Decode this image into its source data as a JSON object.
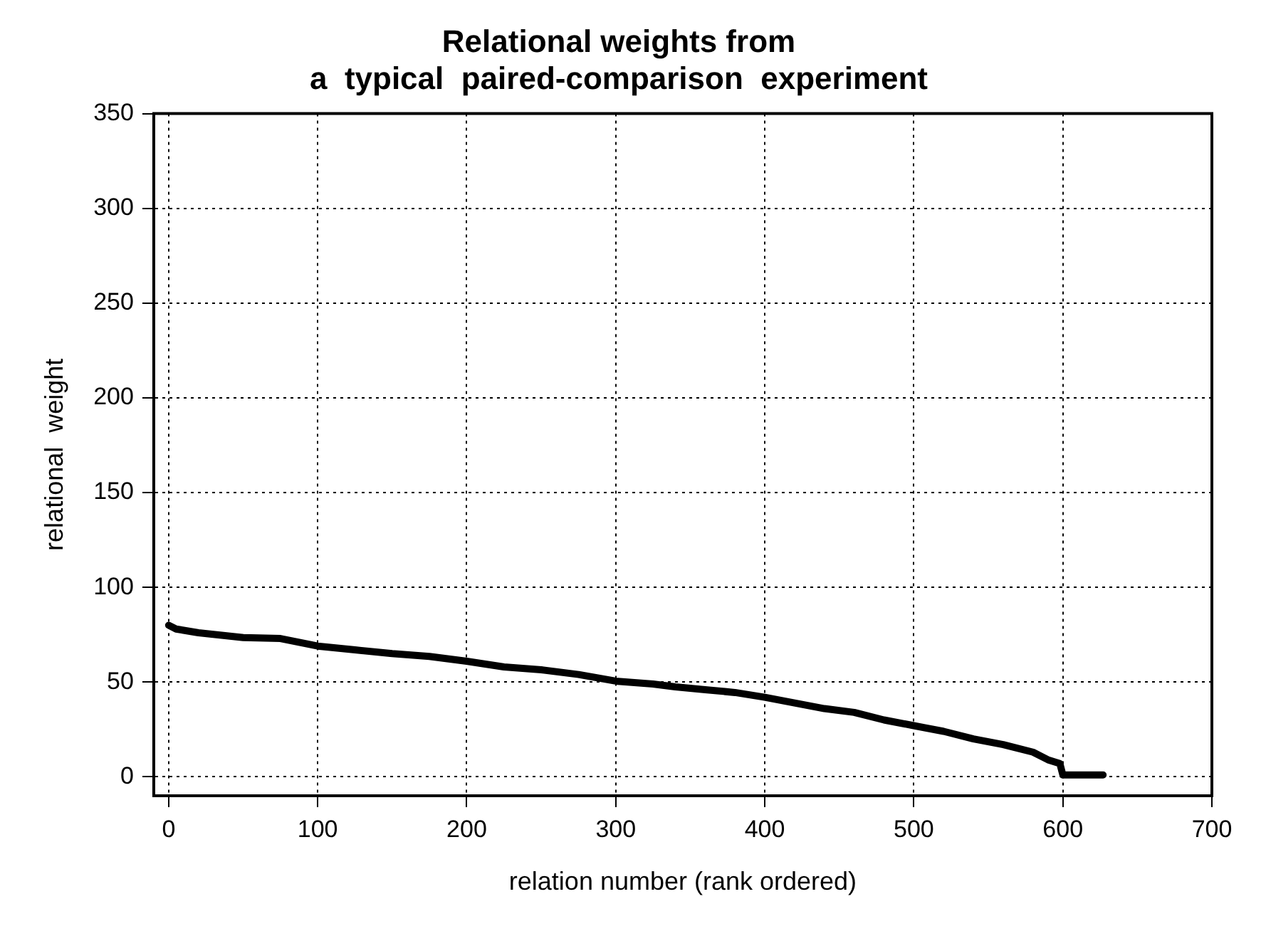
{
  "chart_data": {
    "type": "line",
    "title": "Relational weights from\na  typical  paired-comparison  experiment",
    "xlabel": "relation number (rank ordered)",
    "ylabel": "relational  weight",
    "series": [
      {
        "color": "#000000",
        "x": [
          0,
          5,
          20,
          50,
          75,
          100,
          125,
          150,
          175,
          200,
          225,
          250,
          275,
          300,
          325,
          340,
          360,
          380,
          400,
          420,
          440,
          460,
          480,
          500,
          520,
          540,
          560,
          580,
          590,
          598,
          600,
          602,
          610,
          627
        ],
        "values": [
          80,
          78,
          76,
          73.5,
          73,
          69,
          67,
          65,
          63.5,
          61,
          58,
          56.5,
          54,
          50.5,
          49,
          47.5,
          46,
          44.5,
          42,
          39,
          36,
          34,
          30,
          27,
          24,
          20,
          17,
          13,
          9,
          7,
          1,
          1,
          1,
          1
        ]
      }
    ],
    "xlim": [
      -10,
      700
    ],
    "xticks": [
      0,
      100,
      200,
      300,
      400,
      500,
      600,
      700
    ],
    "ylim": [
      -10,
      350
    ],
    "yticks": [
      0,
      50,
      100,
      150,
      200,
      250,
      300,
      350
    ],
    "grid": true,
    "legend": false,
    "marker": "none",
    "line_style": "solid"
  }
}
